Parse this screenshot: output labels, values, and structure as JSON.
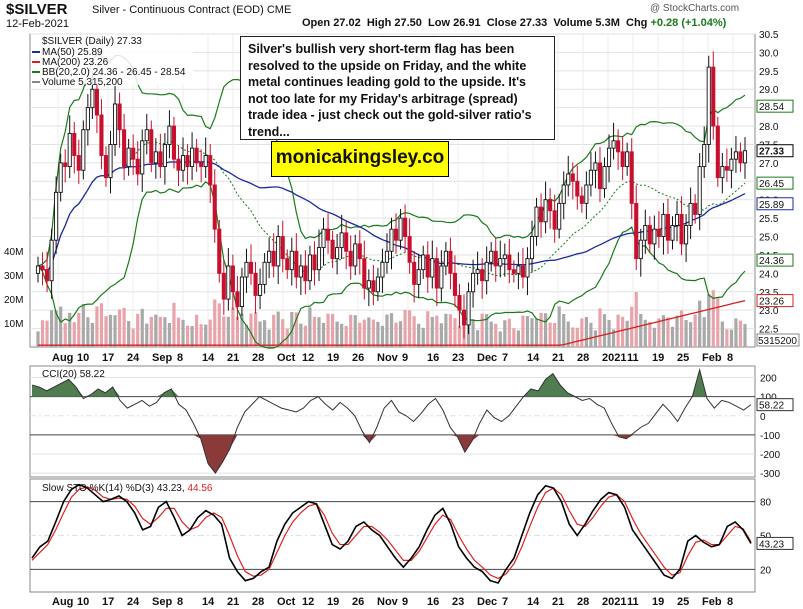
{
  "header": {
    "ticker": "$SILVER",
    "contract": "Silver - Continuous Contract (EOD)",
    "exchange": "CME",
    "date": "12-Feb-2021",
    "open_label": "Open",
    "open": "27.02",
    "high_label": "High",
    "high": "27.50",
    "low_label": "Low",
    "low": "26.91",
    "close_label": "Close",
    "close": "27.33",
    "volume_label": "Volume",
    "volume": "5.3M",
    "chg_label": "Chg",
    "chg": "+0.28 (+1.04%)",
    "watermark": "@ StockCharts.com"
  },
  "annotation": {
    "text": "Silver's bullish very short-term flag has been resolved to the upside on Friday, and the white metal continues leading gold to the upside. It's not too late for my Friday's arbitrage (spread) trade idea - just check out the gold-silver ratio's trend...",
    "brand": "monicakingsley.co"
  },
  "colors": {
    "up": "#111111",
    "down": "#c8102e",
    "ma50": "#1f2a9c",
    "ma200": "#d42020",
    "bb": "#1a7a1a",
    "vol_up": "#a9a9a9",
    "vol_down": "#e8a4aa",
    "cci_fill_pos": "#4f7d4f",
    "cci_fill_neg": "#8b3a3a",
    "sto_k": "#000000",
    "sto_d": "#e02020"
  },
  "legend": {
    "price": "$SILVER (Daily) 27.33",
    "ma50": "MA(50) 25.89",
    "ma200": "MA(200) 23.26",
    "bb_prefix": "BB(20,2.0) 24.36 - 26.45 - 28.54",
    "volume": "Volume 5,315,200",
    "cci": "CCI(20) 58.22",
    "sto": "Slow STO %K(14) %D(3) 43.23, ",
    "sto_d": "44.56"
  },
  "chart_data": [
    {
      "type": "candlestick",
      "title": "$SILVER (Daily) 27.33",
      "ylim": [
        22,
        30.5
      ],
      "y_ticks": [
        22.5,
        23.0,
        23.5,
        24.0,
        24.5,
        25.0,
        25.5,
        26.0,
        26.5,
        27.0,
        27.5,
        28.0,
        28.5,
        29.0,
        29.5,
        30.0,
        30.5
      ],
      "y_tick_labels": [
        "22.5",
        "23.0",
        "23.5",
        "24.0",
        "24.5",
        "25.0",
        "25.5",
        "26.0",
        "26.5",
        "27.0",
        "27.5",
        "28.0",
        "28.5",
        "29.0",
        "29.5",
        "30.0",
        "30.5"
      ],
      "x_labels": [
        "Aug",
        "10",
        "17",
        "24",
        "Sep",
        "8",
        "14",
        "21",
        "28",
        "Oct",
        "12",
        "19",
        "26",
        "Nov",
        "9",
        "16",
        "23",
        "Dec",
        "7",
        "14",
        "21",
        "28",
        "2021",
        "11",
        "19",
        "25",
        "Feb",
        "8"
      ],
      "close": [
        24.2,
        24.1,
        23.8,
        24.9,
        26.2,
        27.0,
        26.9,
        27.8,
        27.2,
        26.8,
        27.9,
        28.5,
        29.0,
        28.3,
        27.2,
        26.6,
        27.5,
        28.6,
        27.9,
        26.9,
        27.4,
        27.1,
        26.7,
        27.6,
        27.9,
        27.0,
        27.3,
        26.9,
        27.5,
        28.0,
        27.1,
        26.8,
        27.2,
        26.9,
        27.4,
        27.0,
        26.9,
        27.2,
        26.4,
        25.2,
        24.0,
        23.3,
        24.2,
        23.5,
        23.1,
        23.9,
        24.3,
        24.0,
        23.4,
        23.7,
        24.3,
        24.6,
        24.2,
        25.0,
        24.4,
        24.1,
        24.6,
        23.9,
        24.2,
        23.8,
        24.5,
        24.1,
        24.7,
        25.2,
        24.9,
        24.4,
        24.7,
        25.1,
        24.6,
        24.2,
        24.8,
        24.4,
        23.6,
        23.8,
        23.5,
        23.9,
        24.3,
        24.6,
        25.2,
        24.9,
        25.5,
        25.0,
        24.3,
        23.7,
        24.1,
        24.5,
        23.9,
        24.4,
        23.6,
        24.2,
        24.6,
        24.0,
        23.4,
        23.0,
        22.6,
        23.5,
        24.0,
        24.1,
        23.8,
        24.3,
        24.6,
        24.2,
        24.4,
        24.5,
        24.1,
        24.0,
        24.2,
        23.9,
        24.4,
        25.0,
        25.8,
        25.4,
        26.0,
        25.7,
        25.2,
        25.9,
        26.4,
        26.7,
        26.5,
        26.1,
        25.9,
        26.4,
        26.8,
        27.0,
        26.3,
        26.9,
        27.4,
        27.6,
        27.3,
        26.9,
        27.3,
        25.9,
        24.4,
        24.9,
        25.3,
        24.8,
        25.2,
        25.0,
        25.6,
        24.9,
        25.3,
        25.6,
        24.8,
        25.3,
        25.9,
        25.6,
        26.9,
        27.5,
        29.6,
        28.0,
        26.6,
        26.9,
        26.8,
        27.1,
        27.3,
        27.0,
        27.33
      ],
      "ma50_end": 25.89,
      "ma200_end": 23.26,
      "bb_upper_end": 28.54,
      "bb_mid_end": 26.45,
      "bb_lower_end": 24.36,
      "right_labels": [
        "28.54",
        "27.33",
        "26.45",
        "25.89",
        "24.36",
        "23.26"
      ],
      "volume_ticks": [
        "10M",
        "20M",
        "30M",
        "40M"
      ],
      "volume_last": "5315200"
    },
    {
      "type": "line",
      "title": "CCI(20) 58.22",
      "ylim": [
        -320,
        260
      ],
      "y_ticks": [
        200,
        100,
        0,
        -100,
        -200,
        -300
      ],
      "y_tick_labels": [
        "200",
        "100",
        "0",
        "-100",
        "-200",
        "-300"
      ],
      "last": "58.22",
      "values": [
        160,
        150,
        130,
        150,
        170,
        190,
        150,
        90,
        110,
        140,
        120,
        150,
        80,
        40,
        60,
        80,
        50,
        70,
        120,
        140,
        60,
        30,
        -40,
        -120,
        -250,
        -300,
        -240,
        -170,
        -60,
        20,
        60,
        100,
        80,
        60,
        40,
        30,
        20,
        40,
        80,
        100,
        60,
        30,
        70,
        40,
        0,
        -80,
        -140,
        -60,
        40,
        80,
        20,
        0,
        -30,
        10,
        60,
        90,
        30,
        -60,
        -110,
        -190,
        -130,
        -40,
        30,
        -10,
        -30,
        0,
        50,
        100,
        140,
        130,
        190,
        220,
        160,
        120,
        100,
        80,
        90,
        60,
        40,
        -40,
        -110,
        -120,
        -90,
        -60,
        -40,
        10,
        60,
        20,
        -30,
        40,
        100,
        240,
        90,
        40,
        80,
        70,
        50,
        30,
        58
      ]
    },
    {
      "type": "line",
      "title": "Slow STO %K(14) %D(3)",
      "ylim": [
        0,
        100
      ],
      "y_ticks": [
        80,
        50,
        20
      ],
      "y_tick_labels": [
        "80",
        "50",
        "20"
      ],
      "series": [
        {
          "name": "%K",
          "last": "43.23",
          "values": [
            30,
            40,
            45,
            62,
            80,
            91,
            95,
            92,
            86,
            80,
            82,
            85,
            80,
            70,
            55,
            58,
            75,
            80,
            66,
            50,
            55,
            66,
            72,
            68,
            60,
            30,
            18,
            10,
            12,
            18,
            22,
            45,
            60,
            70,
            75,
            80,
            78,
            60,
            42,
            38,
            45,
            58,
            62,
            55,
            50,
            40,
            30,
            22,
            30,
            40,
            55,
            68,
            74,
            60,
            40,
            30,
            22,
            18,
            10,
            8,
            20,
            30,
            50,
            70,
            86,
            94,
            92,
            80,
            60,
            50,
            60,
            72,
            82,
            88,
            86,
            75,
            55,
            45,
            35,
            25,
            15,
            12,
            20,
            45,
            50,
            44,
            40,
            42,
            58,
            62,
            55,
            43
          ]
        },
        {
          "name": "%D",
          "last": "44.56",
          "values": [
            28,
            35,
            42,
            55,
            70,
            84,
            91,
            93,
            90,
            84,
            82,
            83,
            82,
            76,
            65,
            60,
            66,
            74,
            74,
            62,
            55,
            58,
            66,
            70,
            66,
            50,
            32,
            18,
            14,
            15,
            20,
            35,
            50,
            62,
            70,
            76,
            78,
            68,
            52,
            42,
            42,
            50,
            58,
            58,
            53,
            46,
            37,
            28,
            28,
            36,
            48,
            60,
            68,
            64,
            50,
            38,
            28,
            22,
            15,
            12,
            16,
            25,
            40,
            58,
            75,
            88,
            92,
            86,
            72,
            60,
            58,
            66,
            76,
            84,
            86,
            80,
            65,
            52,
            42,
            32,
            22,
            15,
            17,
            32,
            44,
            46,
            42,
            42,
            50,
            58,
            56,
            44.56
          ]
        }
      ]
    }
  ]
}
